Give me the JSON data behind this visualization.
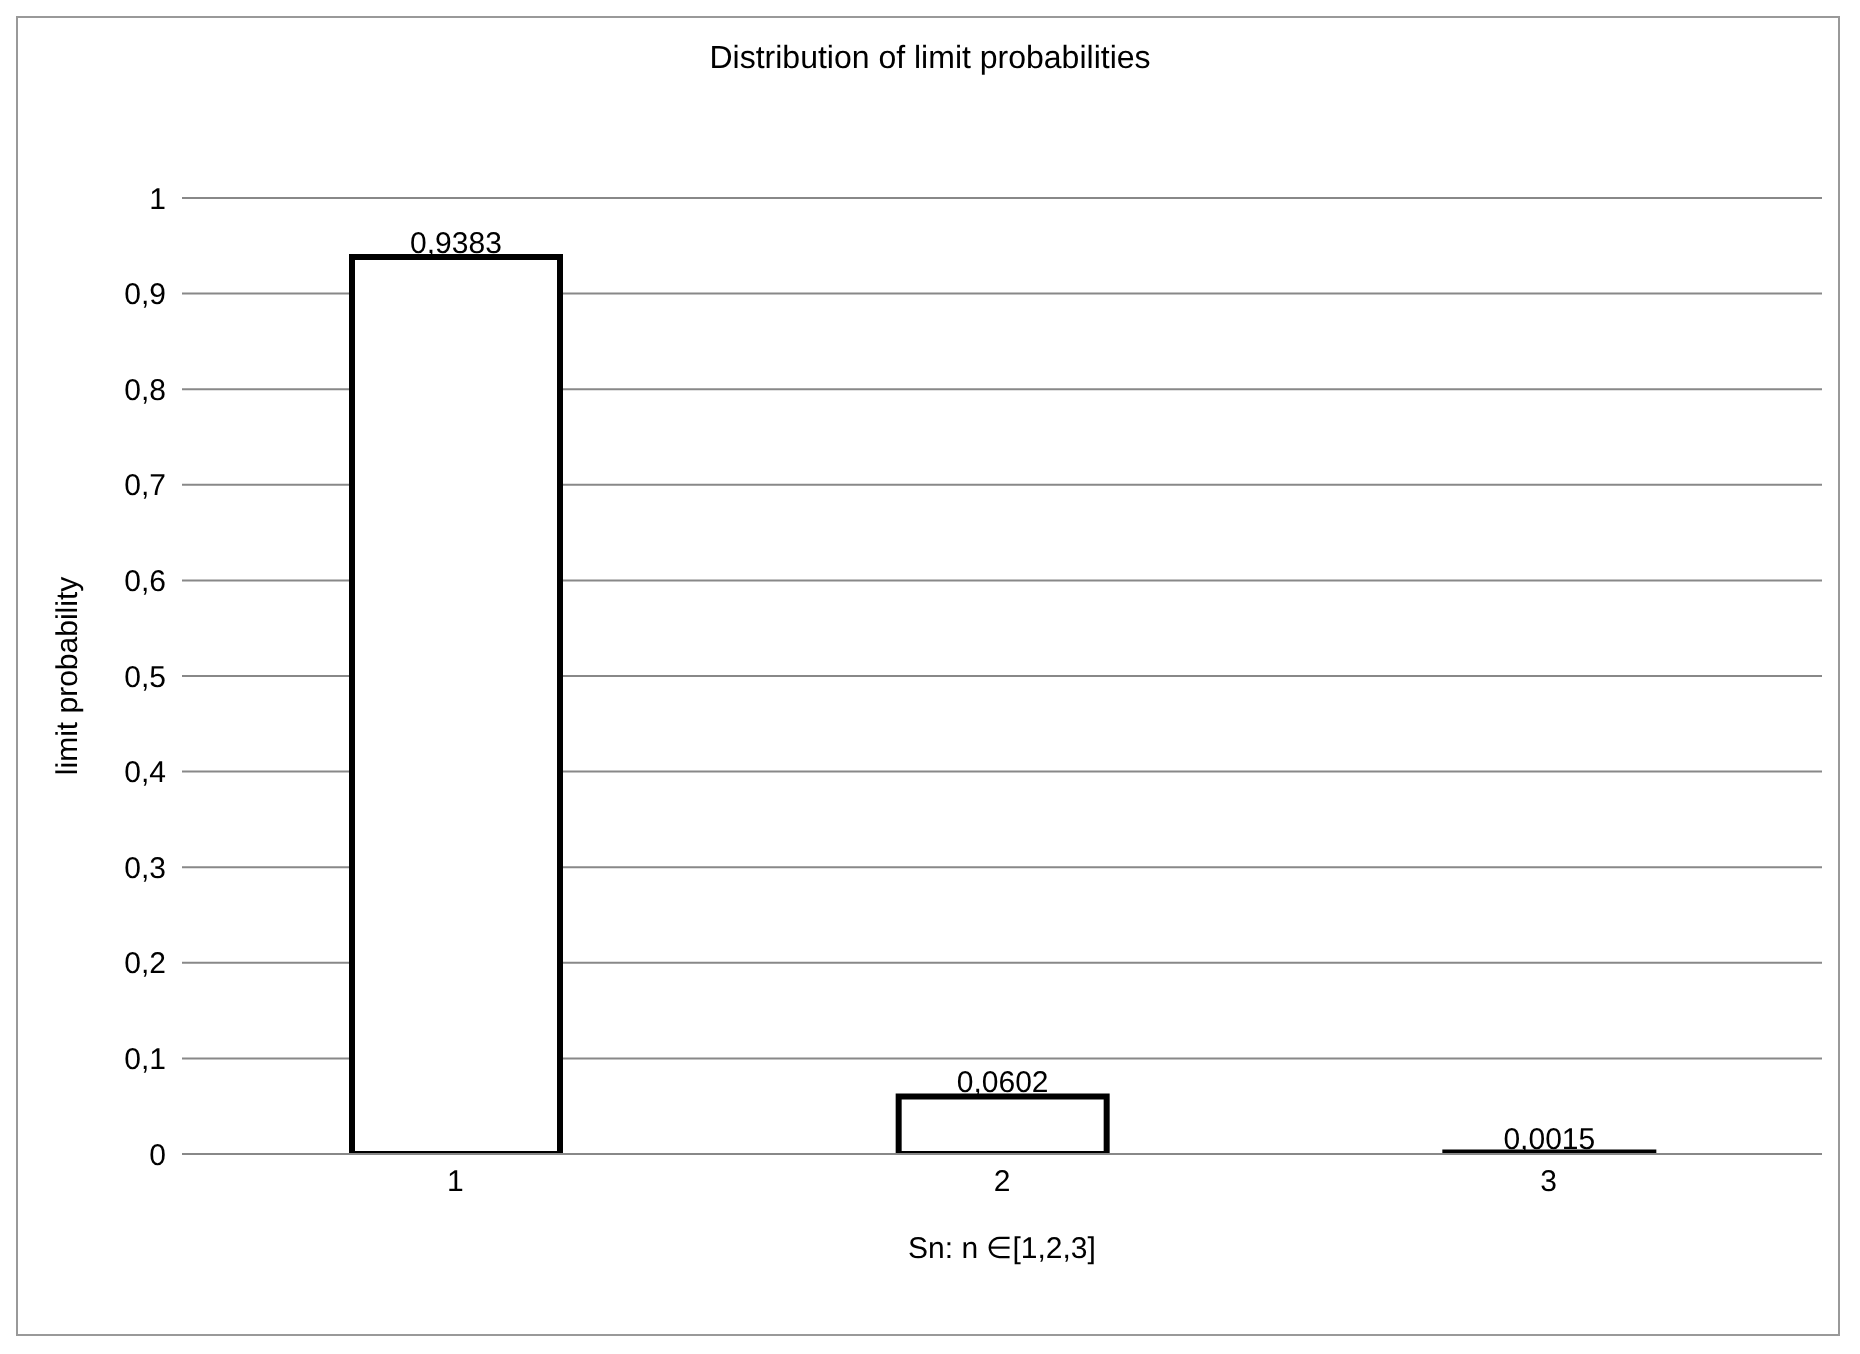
{
  "chart_data": {
    "type": "bar",
    "title": "Distribution of limit probabilities",
    "xlabel": "Sn: n ∈[1,2,3]",
    "ylabel": "limit probability",
    "categories": [
      "1",
      "2",
      "3"
    ],
    "values": [
      0.9383,
      0.0602,
      0.0015
    ],
    "value_labels": [
      "0,9383",
      "0,0602",
      "0,0015"
    ],
    "color": "#ffffff",
    "ylim": [
      0,
      1
    ],
    "yticks": [
      0,
      {
        "value": 0.1,
        "label": "0,1"
      },
      {
        "value": 0.2,
        "label": "0,2"
      },
      {
        "value": 0.3,
        "label": "0,3"
      },
      {
        "value": 0.4,
        "label": "0,4"
      },
      {
        "value": 0.5,
        "label": "0,5"
      },
      {
        "value": 0.6,
        "label": "0,6"
      },
      {
        "value": 0.7,
        "label": "0,7"
      },
      {
        "value": 0.8,
        "label": "0,8"
      },
      {
        "value": 0.9,
        "label": "0,9"
      },
      1
    ],
    "grid": "y",
    "legend": false
  }
}
